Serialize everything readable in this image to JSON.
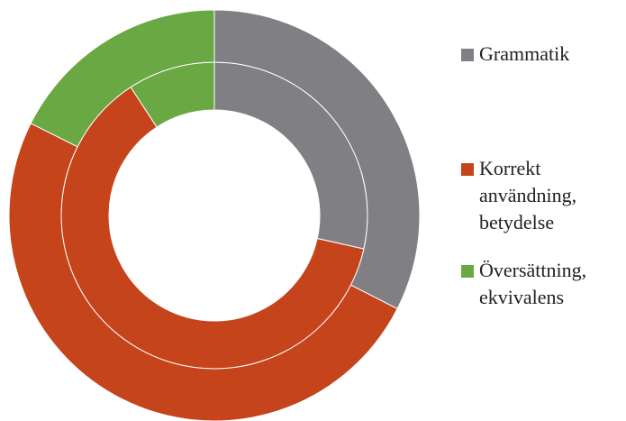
{
  "chart_data": {
    "type": "donut",
    "categories": [
      "Grammatik",
      "Korrekt användning, betydelse",
      "Översättning, ekvivalens"
    ],
    "colors": [
      "#808084",
      "#c5441b",
      "#6aa843"
    ],
    "series": [
      {
        "values": [
          28.5,
          62.3,
          9.2
        ]
      },
      {
        "values": [
          32.5,
          49.9,
          17.6
        ]
      }
    ],
    "legend": "right"
  }
}
